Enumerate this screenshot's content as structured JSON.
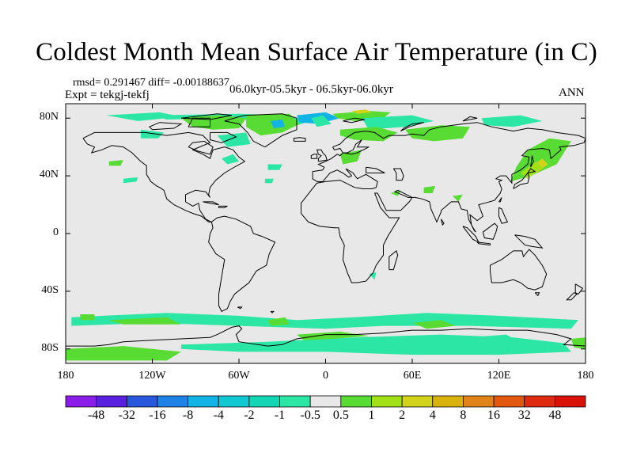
{
  "title": "Coldest Month Mean Surface Air Temperature (in C)",
  "stats": {
    "rmsd": "rmsd= 0.291467  diff= -0.00188637"
  },
  "experiment": "Expt = tekgj-tekfj",
  "period": "06.0kyr-05.5kyr - 06.5kyr-06.0kyr",
  "season": "ANN",
  "y_axis": {
    "ticks": [
      {
        "label": "80N",
        "lat": 80
      },
      {
        "label": "40N",
        "lat": 40
      },
      {
        "label": "0",
        "lat": 0
      },
      {
        "label": "40S",
        "lat": -40
      },
      {
        "label": "80S",
        "lat": -80
      }
    ]
  },
  "x_axis": {
    "ticks": [
      {
        "label": "180",
        "lon": -180
      },
      {
        "label": "120W",
        "lon": -120
      },
      {
        "label": "60W",
        "lon": -60
      },
      {
        "label": "0",
        "lon": 0
      },
      {
        "label": "60E",
        "lon": 60
      },
      {
        "label": "120E",
        "lon": 120
      },
      {
        "label": "180",
        "lon": 180
      }
    ]
  },
  "colorbar": {
    "levels": [
      "-48",
      "-32",
      "-16",
      "-8",
      "-4",
      "-2",
      "-1",
      "-0.5",
      "0.5",
      "1",
      "2",
      "4",
      "8",
      "16",
      "32",
      "48"
    ],
    "colors": [
      "#8a1ee8",
      "#5a20e0",
      "#2a58dc",
      "#1e82e6",
      "#12b4e6",
      "#10c8d2",
      "#14d6b4",
      "#2ce6a6",
      "#e8e8e8",
      "#58dc34",
      "#a2e018",
      "#d2d21a",
      "#dab20e",
      "#e0841a",
      "#e2580e",
      "#e02a10",
      "#d81206"
    ],
    "neutral": "#e8e8e8",
    "negative_small": "#2ce6a6",
    "positive_small": "#58dc34"
  }
}
